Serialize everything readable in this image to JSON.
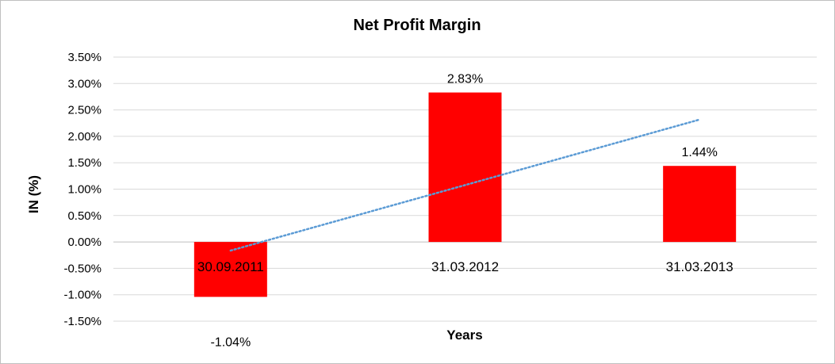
{
  "chart_data": {
    "type": "bar",
    "title": "Net Profit Margin",
    "xlabel": "Years",
    "ylabel": "IN (%)",
    "categories": [
      "30.09.2011",
      "31.03.2012",
      "31.03.2013"
    ],
    "values": [
      -1.04,
      2.83,
      1.44
    ],
    "data_labels": [
      "-1.04%",
      "2.83%",
      "1.44%"
    ],
    "ylim": [
      -1.5,
      3.5
    ],
    "y_ticks": [
      -1.5,
      -1.0,
      -0.5,
      0.0,
      0.5,
      1.0,
      1.5,
      2.0,
      2.5,
      3.0,
      3.5
    ],
    "y_tick_labels": [
      "-1.50%",
      "-1.00%",
      "-0.50%",
      "0.00%",
      "0.50%",
      "1.00%",
      "1.50%",
      "2.00%",
      "2.50%",
      "3.00%",
      "3.50%"
    ],
    "grid": true,
    "bar_color": "#ff0000",
    "trendline": {
      "type": "linear",
      "style": "dotted",
      "color": "#5b9bd5"
    },
    "legend": "none"
  }
}
